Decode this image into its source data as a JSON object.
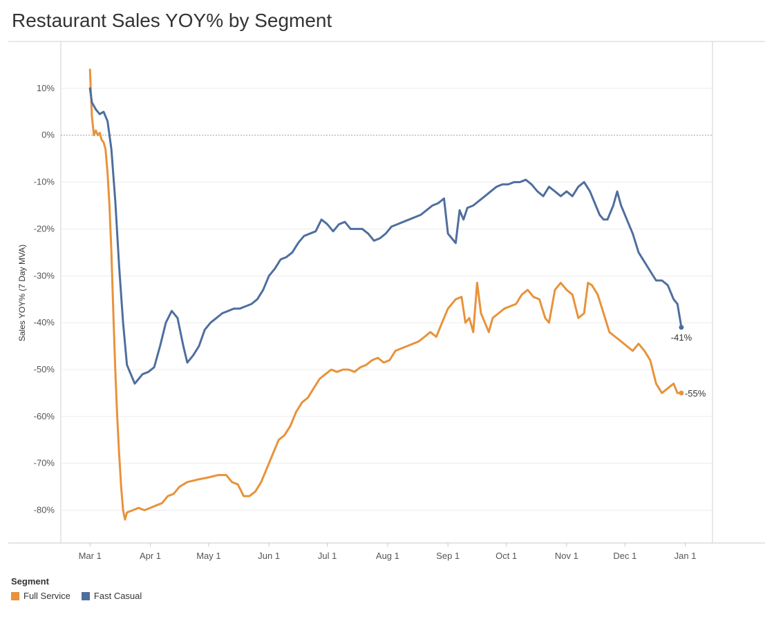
{
  "title": "Restaurant Sales YOY% by Segment",
  "legend": {
    "title": "Segment",
    "items": [
      {
        "label": "Full Service",
        "color": "#E8923A"
      },
      {
        "label": "Fast Casual",
        "color": "#4E6E9E"
      }
    ]
  },
  "chart_data": {
    "type": "line",
    "title": "Restaurant Sales YOY% by Segment",
    "xlabel": "",
    "ylabel": "Sales YOY% (7 Day MVA)",
    "x_ticks": [
      "Mar 1",
      "Apr 1",
      "May 1",
      "Jun 1",
      "Jul 1",
      "Aug 1",
      "Sep 1",
      "Oct 1",
      "Nov 1",
      "Dec 1",
      "Jan 1"
    ],
    "x_range": [
      "2020-02-15",
      "2021-01-15"
    ],
    "ylim": [
      -87,
      20
    ],
    "y_ticks": [
      10,
      0,
      -10,
      -20,
      -30,
      -40,
      -50,
      -60,
      -70,
      -80
    ],
    "y_tick_labels": [
      "10%",
      "0%",
      "-10%",
      "-20%",
      "-30%",
      "-40%",
      "-50%",
      "-60%",
      "-70%",
      "-80%"
    ],
    "grid": true,
    "reference_line": 0,
    "legend_placement": "bottom-left",
    "series": [
      {
        "name": "Full Service",
        "color": "#E8923A",
        "end_label": "-55%",
        "points": [
          [
            "2020-03-01",
            14
          ],
          [
            "2020-03-02",
            4
          ],
          [
            "2020-03-03",
            0
          ],
          [
            "2020-03-04",
            1
          ],
          [
            "2020-03-05",
            0
          ],
          [
            "2020-03-06",
            0.5
          ],
          [
            "2020-03-07",
            -1
          ],
          [
            "2020-03-08",
            -1.5
          ],
          [
            "2020-03-09",
            -3
          ],
          [
            "2020-03-10",
            -8
          ],
          [
            "2020-03-11",
            -15
          ],
          [
            "2020-03-12",
            -25
          ],
          [
            "2020-03-13",
            -38
          ],
          [
            "2020-03-14",
            -50
          ],
          [
            "2020-03-15",
            -60
          ],
          [
            "2020-03-16",
            -68
          ],
          [
            "2020-03-17",
            -75
          ],
          [
            "2020-03-18",
            -80
          ],
          [
            "2020-03-19",
            -82
          ],
          [
            "2020-03-20",
            -80.5
          ],
          [
            "2020-03-23",
            -80
          ],
          [
            "2020-03-26",
            -79.5
          ],
          [
            "2020-03-29",
            -80
          ],
          [
            "2020-04-01",
            -79.5
          ],
          [
            "2020-04-04",
            -79
          ],
          [
            "2020-04-07",
            -78.5
          ],
          [
            "2020-04-10",
            -77
          ],
          [
            "2020-04-13",
            -76.5
          ],
          [
            "2020-04-16",
            -75
          ],
          [
            "2020-04-20",
            -74
          ],
          [
            "2020-04-25",
            -73.5
          ],
          [
            "2020-05-01",
            -73
          ],
          [
            "2020-05-06",
            -72.5
          ],
          [
            "2020-05-10",
            -72.5
          ],
          [
            "2020-05-13",
            -74
          ],
          [
            "2020-05-16",
            -74.5
          ],
          [
            "2020-05-19",
            -77
          ],
          [
            "2020-05-22",
            -77
          ],
          [
            "2020-05-25",
            -76
          ],
          [
            "2020-05-28",
            -74
          ],
          [
            "2020-05-31",
            -71
          ],
          [
            "2020-06-03",
            -68
          ],
          [
            "2020-06-06",
            -65
          ],
          [
            "2020-06-09",
            -64
          ],
          [
            "2020-06-12",
            -62
          ],
          [
            "2020-06-15",
            -59
          ],
          [
            "2020-06-18",
            -57
          ],
          [
            "2020-06-21",
            -56
          ],
          [
            "2020-06-24",
            -54
          ],
          [
            "2020-06-27",
            -52
          ],
          [
            "2020-06-30",
            -51
          ],
          [
            "2020-07-03",
            -50
          ],
          [
            "2020-07-06",
            -50.5
          ],
          [
            "2020-07-09",
            -50
          ],
          [
            "2020-07-12",
            -50
          ],
          [
            "2020-07-15",
            -50.5
          ],
          [
            "2020-07-18",
            -49.5
          ],
          [
            "2020-07-21",
            -49
          ],
          [
            "2020-07-24",
            -48
          ],
          [
            "2020-07-27",
            -47.5
          ],
          [
            "2020-07-30",
            -48.5
          ],
          [
            "2020-08-02",
            -48
          ],
          [
            "2020-08-05",
            -46
          ],
          [
            "2020-08-08",
            -45.5
          ],
          [
            "2020-08-11",
            -45
          ],
          [
            "2020-08-14",
            -44.5
          ],
          [
            "2020-08-17",
            -44
          ],
          [
            "2020-08-20",
            -43
          ],
          [
            "2020-08-23",
            -42
          ],
          [
            "2020-08-26",
            -43
          ],
          [
            "2020-08-29",
            -40
          ],
          [
            "2020-09-01",
            -37
          ],
          [
            "2020-09-03",
            -36
          ],
          [
            "2020-09-05",
            -35
          ],
          [
            "2020-09-08",
            -34.5
          ],
          [
            "2020-09-10",
            -40
          ],
          [
            "2020-09-12",
            -39
          ],
          [
            "2020-09-14",
            -42
          ],
          [
            "2020-09-16",
            -31.5
          ],
          [
            "2020-09-18",
            -38
          ],
          [
            "2020-09-20",
            -40
          ],
          [
            "2020-09-22",
            -42
          ],
          [
            "2020-09-24",
            -39
          ],
          [
            "2020-09-27",
            -38
          ],
          [
            "2020-09-30",
            -37
          ],
          [
            "2020-10-03",
            -36.5
          ],
          [
            "2020-10-06",
            -36
          ],
          [
            "2020-10-09",
            -34
          ],
          [
            "2020-10-12",
            -33
          ],
          [
            "2020-10-15",
            -34.5
          ],
          [
            "2020-10-18",
            -35
          ],
          [
            "2020-10-21",
            -39
          ],
          [
            "2020-10-23",
            -40
          ],
          [
            "2020-10-26",
            -33
          ],
          [
            "2020-10-29",
            -31.5
          ],
          [
            "2020-11-01",
            -33
          ],
          [
            "2020-11-04",
            -34
          ],
          [
            "2020-11-07",
            -39
          ],
          [
            "2020-11-10",
            -38
          ],
          [
            "2020-11-12",
            -31.5
          ],
          [
            "2020-11-14",
            -32
          ],
          [
            "2020-11-17",
            -34
          ],
          [
            "2020-11-20",
            -38
          ],
          [
            "2020-11-23",
            -42
          ],
          [
            "2020-11-26",
            -43
          ],
          [
            "2020-11-29",
            -44
          ],
          [
            "2020-12-02",
            -45
          ],
          [
            "2020-12-05",
            -46
          ],
          [
            "2020-12-08",
            -44.5
          ],
          [
            "2020-12-11",
            -46
          ],
          [
            "2020-12-14",
            -48
          ],
          [
            "2020-12-17",
            -53
          ],
          [
            "2020-12-20",
            -55
          ],
          [
            "2020-12-23",
            -54
          ],
          [
            "2020-12-26",
            -53
          ],
          [
            "2020-12-28",
            -55
          ],
          [
            "2020-12-30",
            -55
          ]
        ]
      },
      {
        "name": "Fast Casual",
        "color": "#4E6E9E",
        "end_label": "-41%",
        "points": [
          [
            "2020-03-01",
            10
          ],
          [
            "2020-03-02",
            7
          ],
          [
            "2020-03-04",
            5.5
          ],
          [
            "2020-03-06",
            4.5
          ],
          [
            "2020-03-08",
            5
          ],
          [
            "2020-03-10",
            3
          ],
          [
            "2020-03-12",
            -3
          ],
          [
            "2020-03-14",
            -14
          ],
          [
            "2020-03-16",
            -28
          ],
          [
            "2020-03-18",
            -40
          ],
          [
            "2020-03-20",
            -49
          ],
          [
            "2020-03-22",
            -51
          ],
          [
            "2020-03-24",
            -53
          ],
          [
            "2020-03-26",
            -52
          ],
          [
            "2020-03-28",
            -51
          ],
          [
            "2020-03-31",
            -50.5
          ],
          [
            "2020-04-03",
            -49.5
          ],
          [
            "2020-04-06",
            -45
          ],
          [
            "2020-04-09",
            -40
          ],
          [
            "2020-04-12",
            -37.5
          ],
          [
            "2020-04-15",
            -39
          ],
          [
            "2020-04-18",
            -45
          ],
          [
            "2020-04-20",
            -48.5
          ],
          [
            "2020-04-23",
            -47
          ],
          [
            "2020-04-26",
            -45
          ],
          [
            "2020-04-29",
            -41.5
          ],
          [
            "2020-05-02",
            -40
          ],
          [
            "2020-05-05",
            -39
          ],
          [
            "2020-05-08",
            -38
          ],
          [
            "2020-05-11",
            -37.5
          ],
          [
            "2020-05-14",
            -37
          ],
          [
            "2020-05-17",
            -37
          ],
          [
            "2020-05-20",
            -36.5
          ],
          [
            "2020-05-23",
            -36
          ],
          [
            "2020-05-26",
            -35
          ],
          [
            "2020-05-29",
            -33
          ],
          [
            "2020-06-01",
            -30
          ],
          [
            "2020-06-04",
            -28.5
          ],
          [
            "2020-06-07",
            -26.5
          ],
          [
            "2020-06-10",
            -26
          ],
          [
            "2020-06-13",
            -25
          ],
          [
            "2020-06-16",
            -23
          ],
          [
            "2020-06-19",
            -21.5
          ],
          [
            "2020-06-22",
            -21
          ],
          [
            "2020-06-25",
            -20.5
          ],
          [
            "2020-06-28",
            -18
          ],
          [
            "2020-07-01",
            -19
          ],
          [
            "2020-07-04",
            -20.5
          ],
          [
            "2020-07-07",
            -19
          ],
          [
            "2020-07-10",
            -18.5
          ],
          [
            "2020-07-13",
            -20
          ],
          [
            "2020-07-16",
            -20
          ],
          [
            "2020-07-19",
            -20
          ],
          [
            "2020-07-22",
            -21
          ],
          [
            "2020-07-25",
            -22.5
          ],
          [
            "2020-07-28",
            -22
          ],
          [
            "2020-07-31",
            -21
          ],
          [
            "2020-08-03",
            -19.5
          ],
          [
            "2020-08-06",
            -19
          ],
          [
            "2020-08-09",
            -18.5
          ],
          [
            "2020-08-12",
            -18
          ],
          [
            "2020-08-15",
            -17.5
          ],
          [
            "2020-08-18",
            -17
          ],
          [
            "2020-08-21",
            -16
          ],
          [
            "2020-08-24",
            -15
          ],
          [
            "2020-08-27",
            -14.5
          ],
          [
            "2020-08-30",
            -13.5
          ],
          [
            "2020-09-01",
            -21
          ],
          [
            "2020-09-03",
            -22
          ],
          [
            "2020-09-05",
            -23
          ],
          [
            "2020-09-07",
            -16
          ],
          [
            "2020-09-09",
            -18
          ],
          [
            "2020-09-11",
            -15.5
          ],
          [
            "2020-09-14",
            -15
          ],
          [
            "2020-09-17",
            -14
          ],
          [
            "2020-09-20",
            -13
          ],
          [
            "2020-09-23",
            -12
          ],
          [
            "2020-09-26",
            -11
          ],
          [
            "2020-09-29",
            -10.5
          ],
          [
            "2020-10-02",
            -10.5
          ],
          [
            "2020-10-05",
            -10
          ],
          [
            "2020-10-08",
            -10
          ],
          [
            "2020-10-11",
            -9.5
          ],
          [
            "2020-10-14",
            -10.5
          ],
          [
            "2020-10-17",
            -12
          ],
          [
            "2020-10-20",
            -13
          ],
          [
            "2020-10-23",
            -11
          ],
          [
            "2020-10-26",
            -12
          ],
          [
            "2020-10-29",
            -13
          ],
          [
            "2020-11-01",
            -12
          ],
          [
            "2020-11-04",
            -13
          ],
          [
            "2020-11-07",
            -11
          ],
          [
            "2020-11-10",
            -10
          ],
          [
            "2020-11-13",
            -12
          ],
          [
            "2020-11-16",
            -15
          ],
          [
            "2020-11-18",
            -17
          ],
          [
            "2020-11-20",
            -18
          ],
          [
            "2020-11-22",
            -18
          ],
          [
            "2020-11-25",
            -15
          ],
          [
            "2020-11-27",
            -12
          ],
          [
            "2020-11-29",
            -15
          ],
          [
            "2020-12-02",
            -18
          ],
          [
            "2020-12-05",
            -21
          ],
          [
            "2020-12-08",
            -25
          ],
          [
            "2020-12-11",
            -27
          ],
          [
            "2020-12-14",
            -29
          ],
          [
            "2020-12-17",
            -31
          ],
          [
            "2020-12-20",
            -31
          ],
          [
            "2020-12-23",
            -32
          ],
          [
            "2020-12-26",
            -35
          ],
          [
            "2020-12-28",
            -36
          ],
          [
            "2020-12-30",
            -41
          ]
        ]
      }
    ]
  }
}
